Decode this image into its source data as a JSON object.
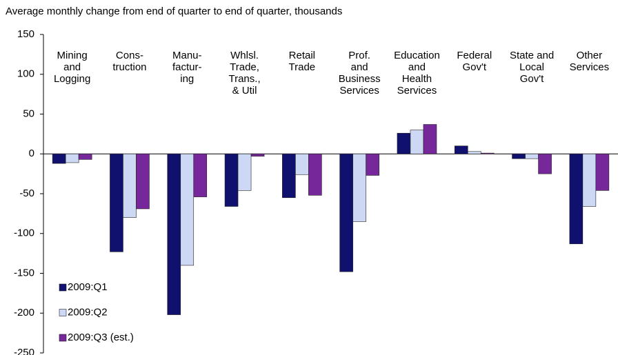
{
  "chart_data": {
    "type": "bar",
    "title": "Average monthly change from end of quarter to end of quarter, thousands",
    "categories": [
      "Mining\nand\nLogging",
      "Cons-\ntruction",
      "Manu-\nfactur-\ning",
      "Whlsl.\nTrade,\nTrans.,\n& Util",
      "Retail\nTrade",
      "Prof.\nand\nBusiness\nServices",
      "Education\nand\nHealth\nServices",
      "Federal\nGov't",
      "State and\nLocal\nGov't",
      "Other\nServices"
    ],
    "series": [
      {
        "name": "2009:Q1",
        "color": "#10106e",
        "values": [
          -12,
          -123,
          -202,
          -66,
          -55,
          -148,
          26,
          10,
          -6,
          -113
        ]
      },
      {
        "name": "2009:Q2",
        "color": "#ccd8f4",
        "values": [
          -11,
          -80,
          -140,
          -46,
          -26,
          -85,
          30,
          3,
          -6,
          -66
        ]
      },
      {
        "name": "2009:Q3 (est.)",
        "color": "#76279a",
        "values": [
          -7,
          -69,
          -54,
          -3,
          -52,
          -27,
          37,
          1,
          -25,
          -46
        ]
      }
    ],
    "ylim": [
      -250,
      150
    ],
    "yticks": [
      -250,
      -200,
      -150,
      -100,
      -50,
      0,
      50,
      100,
      150
    ],
    "legend": "lower-left"
  }
}
